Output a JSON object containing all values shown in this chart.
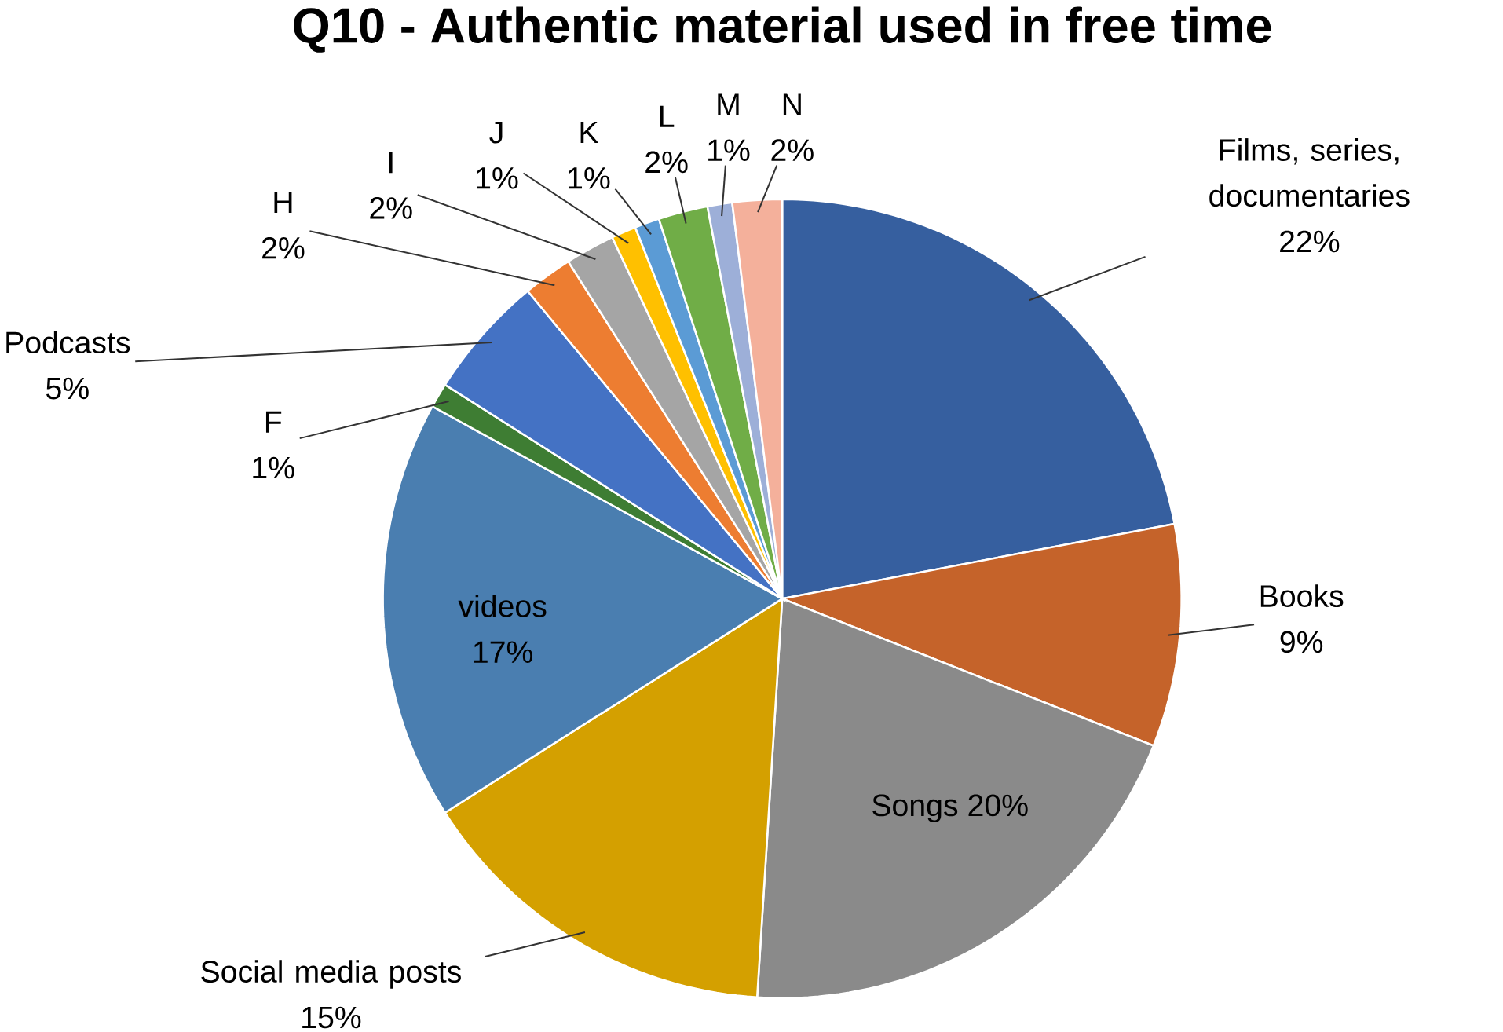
{
  "chart_data": {
    "type": "pie",
    "title": "Q10 - Authentic material used in free time",
    "categories": [
      "Films, series, documentaries",
      "Books",
      "Songs",
      "Social media posts",
      "videos",
      "F",
      "Podcasts",
      "H",
      "I",
      "J",
      "K",
      "L",
      "M",
      "N"
    ],
    "values": [
      22,
      9,
      20,
      15,
      17,
      1,
      5,
      2,
      2,
      1,
      1,
      2,
      1,
      2
    ],
    "value_labels": [
      "22%",
      "9%",
      "20%",
      "15%",
      "17%",
      "1%",
      "5%",
      "2%",
      "2%",
      "1%",
      "1%",
      "2%",
      "1%",
      "2%"
    ],
    "colors": [
      "#365f9f",
      "#c5632a",
      "#8a8a8a",
      "#d4a000",
      "#4a7eb0",
      "#3e7d33",
      "#4472c4",
      "#ed7d31",
      "#a5a5a5",
      "#ffc000",
      "#5b9bd5",
      "#70ad47",
      "#9dafd8",
      "#f4b09b"
    ]
  }
}
